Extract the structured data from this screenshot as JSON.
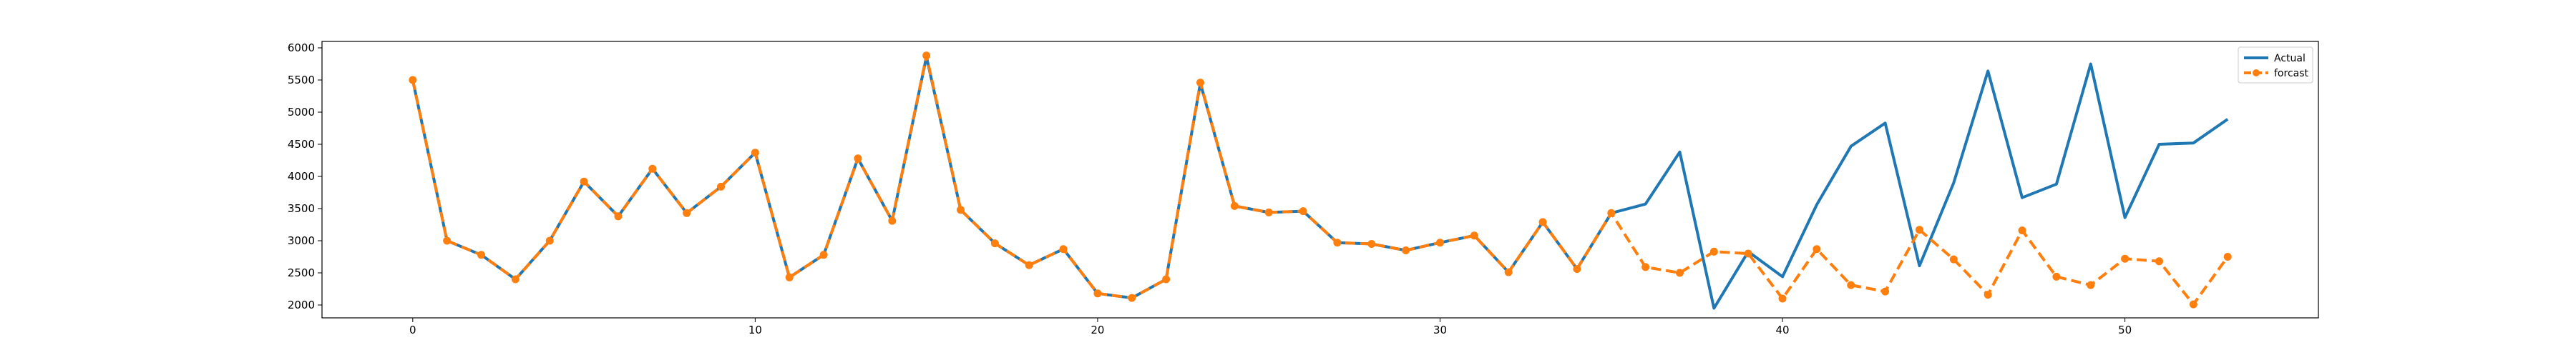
{
  "chart_data": {
    "type": "line",
    "title": "",
    "xlabel": "",
    "ylabel": "",
    "xlim": [
      -2.65,
      55.65
    ],
    "ylim": [
      1800,
      6100
    ],
    "xticks": [
      0,
      10,
      20,
      30,
      40,
      50
    ],
    "yticks": [
      2000,
      2500,
      3000,
      3500,
      4000,
      4500,
      5000,
      5500,
      6000
    ],
    "xtick_labels": [
      "0",
      "10",
      "20",
      "30",
      "40",
      "50"
    ],
    "ytick_labels": [
      "2000",
      "2500",
      "3000",
      "3500",
      "4000",
      "4500",
      "5000",
      "5500",
      "6000"
    ],
    "grid": false,
    "legend_position": "top-right",
    "series": [
      {
        "name": "Actual",
        "color": "#1f77b4",
        "style": "solid",
        "marker": "none",
        "x": [
          0,
          1,
          2,
          3,
          4,
          5,
          6,
          7,
          8,
          9,
          10,
          11,
          12,
          13,
          14,
          15,
          16,
          17,
          18,
          19,
          20,
          21,
          22,
          23,
          24,
          25,
          26,
          27,
          28,
          29,
          30,
          31,
          32,
          33,
          34,
          35,
          36,
          37,
          38,
          39,
          40,
          41,
          42,
          43,
          44,
          45,
          46,
          47,
          48,
          49,
          50,
          51,
          52,
          53
        ],
        "values": [
          5500,
          3000,
          2780,
          2400,
          3000,
          3920,
          3380,
          4120,
          3430,
          3840,
          4370,
          2430,
          2780,
          4280,
          3310,
          5860,
          3480,
          2960,
          2620,
          2870,
          2180,
          2110,
          2400,
          5450,
          3540,
          3440,
          3460,
          2970,
          2950,
          2850,
          2970,
          3080,
          2510,
          3290,
          2560,
          3430,
          3570,
          4380,
          1950,
          2830,
          2440,
          3560,
          4470,
          4830,
          2610,
          3900,
          5640,
          3670,
          3880,
          5750,
          3360,
          4500,
          4520,
          4890
        ]
      },
      {
        "name": "forcast",
        "color": "#ff7f0e",
        "style": "dashed",
        "marker": "circle",
        "x": [
          0,
          1,
          2,
          3,
          4,
          5,
          6,
          7,
          8,
          9,
          10,
          11,
          12,
          13,
          14,
          15,
          16,
          17,
          18,
          19,
          20,
          21,
          22,
          23,
          24,
          25,
          26,
          27,
          28,
          29,
          30,
          31,
          32,
          33,
          34,
          35,
          36,
          37,
          38,
          39,
          40,
          41,
          42,
          43,
          44,
          45,
          46,
          47,
          48,
          49,
          50,
          51,
          52,
          53
        ],
        "values": [
          5500,
          3000,
          2780,
          2400,
          3000,
          3920,
          3380,
          4120,
          3430,
          3840,
          4370,
          2430,
          2780,
          4280,
          3310,
          5880,
          3480,
          2960,
          2620,
          2870,
          2180,
          2110,
          2400,
          5460,
          3540,
          3440,
          3460,
          2970,
          2950,
          2850,
          2970,
          3080,
          2510,
          3290,
          2560,
          3430,
          2590,
          2500,
          2830,
          2800,
          2100,
          2870,
          2310,
          2210,
          3170,
          2710,
          2160,
          3160,
          2440,
          2310,
          2720,
          2680,
          2010,
          2750
        ]
      }
    ]
  }
}
